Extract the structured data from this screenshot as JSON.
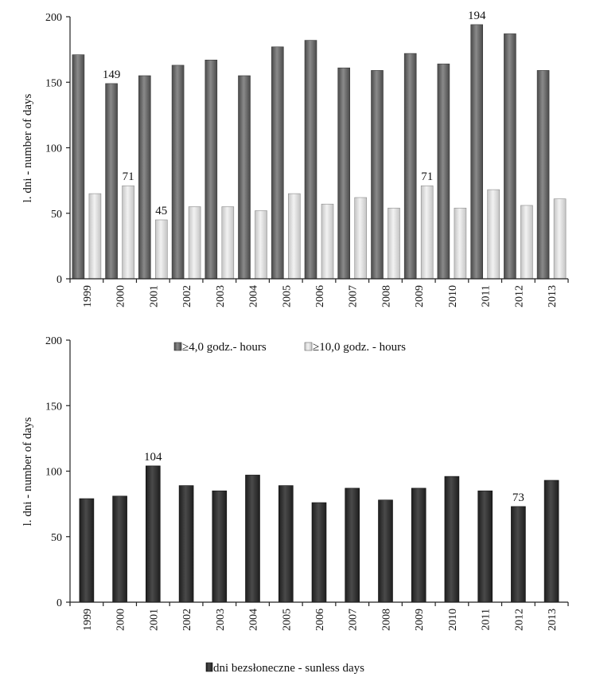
{
  "chart_data": [
    {
      "type": "bar",
      "title": "",
      "xlabel": "",
      "ylabel": "l. dni - number of days",
      "ylim": [
        0,
        200
      ],
      "yticks": [
        0,
        50,
        100,
        150,
        200
      ],
      "grid": false,
      "legend": "below",
      "categories": [
        "1999",
        "2000",
        "2001",
        "2002",
        "2003",
        "2004",
        "2005",
        "2006",
        "2007",
        "2008",
        "2009",
        "2010",
        "2011",
        "2012",
        "2013"
      ],
      "series": [
        {
          "name": "≥4,0 godz.- hours",
          "color": "#6b6b6b",
          "values": [
            171,
            149,
            155,
            163,
            167,
            155,
            177,
            182,
            161,
            159,
            172,
            164,
            194,
            187,
            159
          ]
        },
        {
          "name": "≥10,0 godz. - hours",
          "color": "#dcdcdc",
          "values": [
            65,
            71,
            45,
            55,
            55,
            52,
            65,
            57,
            62,
            54,
            71,
            54,
            68,
            56,
            61
          ]
        }
      ],
      "data_labels": [
        {
          "series": 0,
          "index": 1,
          "text": "149"
        },
        {
          "series": 0,
          "index": 12,
          "text": "194"
        },
        {
          "series": 1,
          "index": 1,
          "text": "71"
        },
        {
          "series": 1,
          "index": 2,
          "text": "45"
        },
        {
          "series": 1,
          "index": 10,
          "text": "71"
        }
      ]
    },
    {
      "type": "bar",
      "title": "",
      "xlabel": "",
      "ylabel": "l. dni - number of days",
      "ylim": [
        0,
        200
      ],
      "yticks": [
        0,
        50,
        100,
        150,
        200
      ],
      "grid": false,
      "legend": "bottom",
      "categories": [
        "1999",
        "2000",
        "2001",
        "2002",
        "2003",
        "2004",
        "2005",
        "2006",
        "2007",
        "2008",
        "2009",
        "2010",
        "2011",
        "2012",
        "2013"
      ],
      "series": [
        {
          "name": "dni bezsłoneczne - sunless days",
          "color": "#2e2e2e",
          "values": [
            79,
            81,
            104,
            89,
            85,
            97,
            89,
            76,
            87,
            78,
            87,
            96,
            85,
            73,
            93
          ]
        }
      ],
      "data_labels": [
        {
          "series": 0,
          "index": 2,
          "text": "104"
        },
        {
          "series": 0,
          "index": 13,
          "text": "73"
        }
      ]
    }
  ]
}
